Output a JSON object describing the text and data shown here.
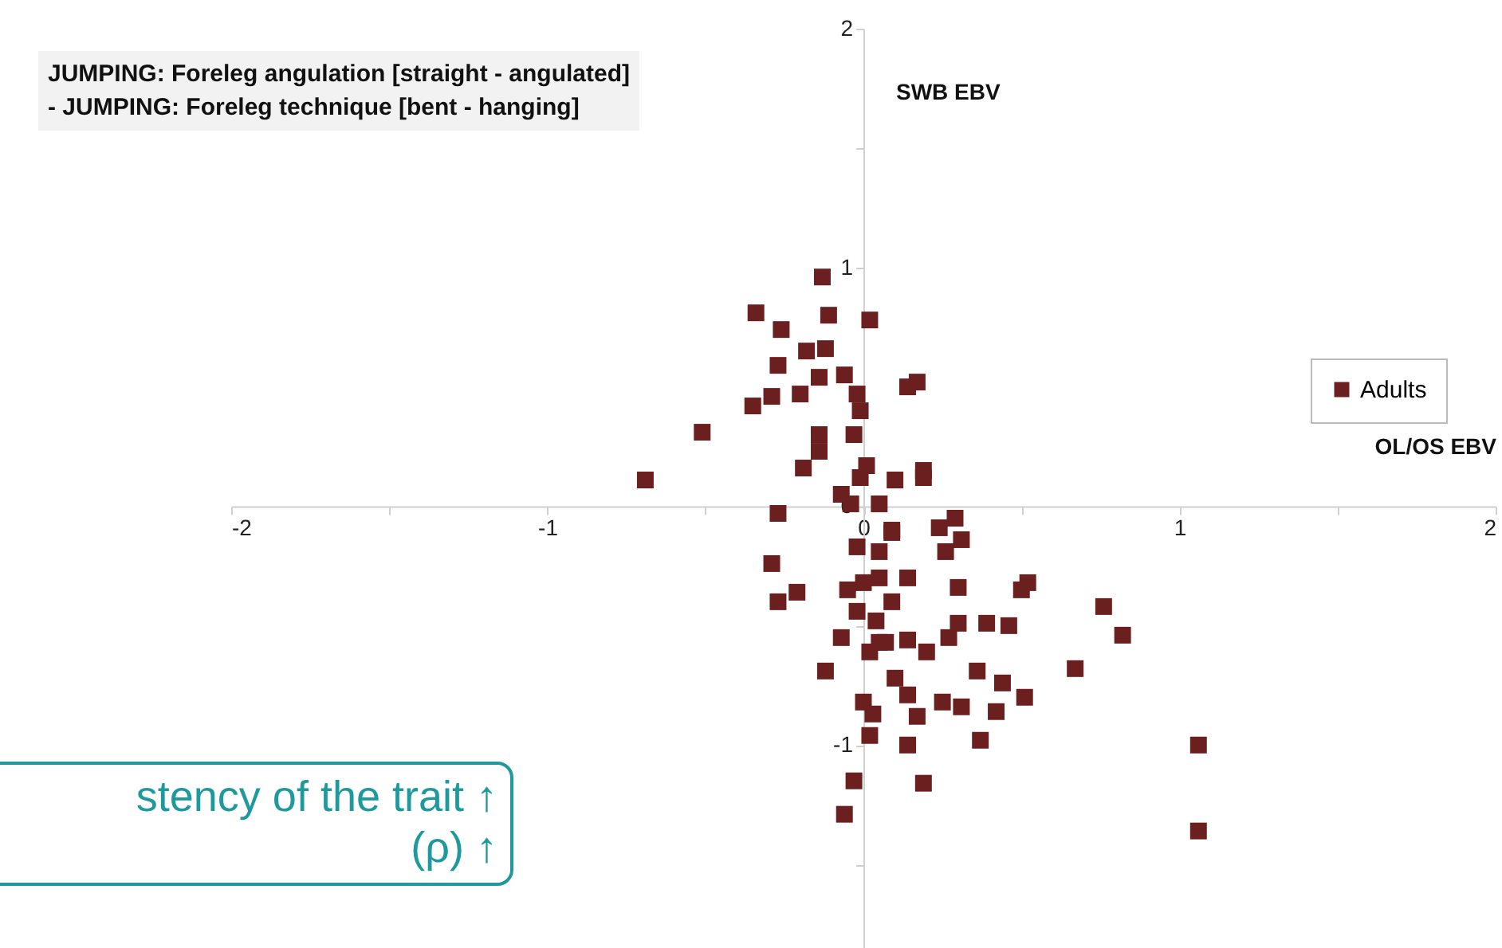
{
  "chart_data": {
    "type": "scatter",
    "title": "JUMPING: Foreleg angulation [straight - angulated]",
    "subtitle": "- JUMPING: Foreleg technique [bent - hanging]",
    "xlabel": "OL/OS EBV",
    "ylabel": "SWB EBV",
    "annotations": [
      "stency of the trait ↑",
      "(ρ) ↑"
    ],
    "xlim": [
      -2,
      2
    ],
    "ylim": [
      -1.85,
      2
    ],
    "xticks": [
      -2,
      {
        "value": -1.5,
        "label": null
      },
      -1,
      {
        "value": -0.5,
        "label": null
      },
      0,
      {
        "value": 0.5,
        "label": null
      },
      1,
      {
        "value": 1.5,
        "label": null
      },
      2
    ],
    "yticks": [
      {
        "value": -1.5,
        "label": null
      },
      -1,
      {
        "value": -0.5,
        "label": null
      },
      0,
      {
        "value": 0.5,
        "label": null
      },
      1,
      {
        "value": 1.5,
        "label": null
      },
      2
    ],
    "marker": "square",
    "legend": "right",
    "grid": false,
    "series": [
      {
        "name": "Adults",
        "color": "#6b1f1f",
        "x": [
          -0.13,
          -0.34,
          -0.11,
          0.02,
          -0.26,
          -0.18,
          -0.12,
          -0.27,
          -0.14,
          -0.06,
          0.14,
          0.17,
          -0.02,
          -0.01,
          -0.2,
          -0.29,
          -0.35,
          -0.51,
          -0.14,
          -0.14,
          -0.03,
          -0.69,
          -0.19,
          0.01,
          -0.01,
          0.1,
          0.19,
          -0.27,
          -0.07,
          -0.04,
          0.05,
          0.19,
          0.29,
          0.24,
          0.31,
          0.26,
          0.09,
          0.52,
          0.5,
          0.3,
          0.09,
          0.76,
          0.82,
          0.39,
          0.46,
          -0.29,
          -0.21,
          -0.27,
          -0.07,
          -0.12,
          0,
          0.03,
          0.02,
          0.14,
          -0.03,
          -0.06,
          0.19,
          -0.05,
          0,
          0.05,
          0.14,
          -0.02,
          0.04,
          0.07,
          0.14,
          0.02,
          0.1,
          0.14,
          0.17,
          -0.02,
          0.05,
          0.09,
          0.67,
          0.36,
          0.44,
          0.51,
          0.42,
          0.31,
          0.25,
          0.37,
          1.06,
          1.06,
          0.2,
          0.05,
          0.27,
          0.3
        ],
        "values": [
          0.96,
          0.81,
          0.8,
          0.78,
          0.74,
          0.65,
          0.66,
          0.59,
          0.54,
          0.55,
          0.5,
          0.52,
          0.47,
          0.4,
          0.47,
          0.46,
          0.42,
          0.31,
          0.3,
          0.23,
          0.3,
          0.11,
          0.16,
          0.17,
          0.12,
          0.11,
          0.15,
          -0.03,
          0.05,
          0.01,
          0.01,
          0.12,
          -0.05,
          -0.09,
          -0.14,
          -0.19,
          -0.1,
          -0.32,
          -0.35,
          -0.34,
          -0.4,
          -0.42,
          -0.54,
          -0.49,
          -0.5,
          -0.24,
          -0.36,
          -0.4,
          -0.55,
          -0.69,
          -0.82,
          -0.87,
          -0.96,
          -1,
          -1.15,
          -1.29,
          -1.16,
          -0.35,
          -0.32,
          -0.3,
          -0.3,
          -0.44,
          -0.48,
          -0.57,
          -0.56,
          -0.61,
          -0.72,
          -0.79,
          -0.88,
          -0.17,
          -0.19,
          -0.11,
          -0.68,
          -0.69,
          -0.74,
          -0.8,
          -0.86,
          -0.84,
          -0.82,
          -0.98,
          -1,
          -1.36,
          -0.61,
          -0.57,
          -0.55,
          -0.49
        ]
      }
    ]
  }
}
